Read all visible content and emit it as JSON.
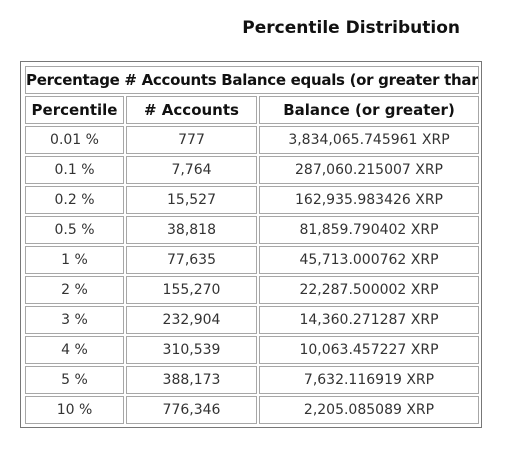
{
  "page": {
    "title": "Percentile Distribution"
  },
  "table": {
    "caption": "Percentage # Accounts Balance equals (or greater than)",
    "headers": [
      "Percentile",
      "# Accounts",
      "Balance (or greater)"
    ],
    "rows": [
      [
        "0.01 %",
        "777",
        "3,834,065.745961 XRP"
      ],
      [
        "0.1 %",
        "7,764",
        "287,060.215007 XRP"
      ],
      [
        "0.2 %",
        "15,527",
        "162,935.983426 XRP"
      ],
      [
        "0.5 %",
        "38,818",
        "81,859.790402 XRP"
      ],
      [
        "1 %",
        "77,635",
        "45,713.000762 XRP"
      ],
      [
        "2 %",
        "155,270",
        "22,287.500002 XRP"
      ],
      [
        "3 %",
        "232,904",
        "14,360.271287 XRP"
      ],
      [
        "4 %",
        "310,539",
        "10,063.457227 XRP"
      ],
      [
        "5 %",
        "388,173",
        "7,632.116919 XRP"
      ],
      [
        "10 %",
        "776,346",
        "2,205.085089 XRP"
      ]
    ]
  }
}
